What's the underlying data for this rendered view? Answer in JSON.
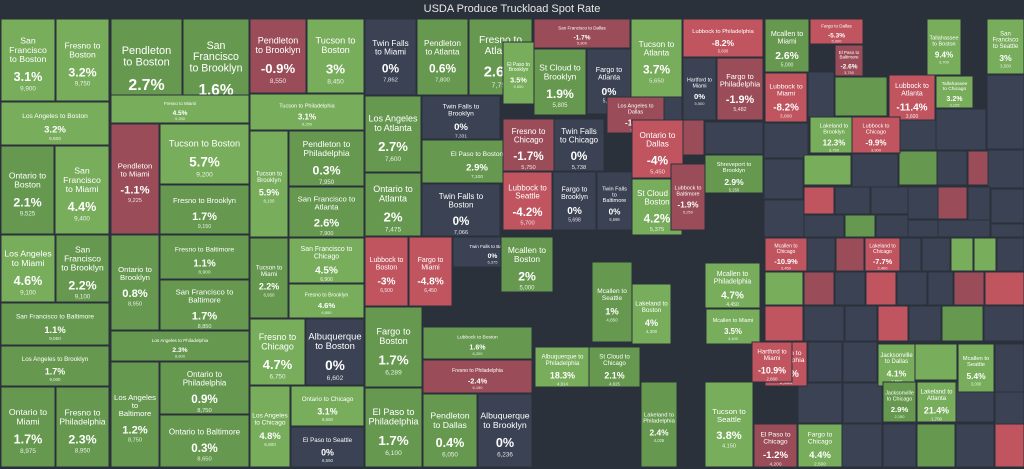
{
  "chart_data": {
    "type": "treemap",
    "title": "USDA Produce Truckload Spot Rate",
    "size_metric": "spot rate ($)",
    "color_metric": "percent change",
    "colors": {
      "neg_strong": "#c0545f",
      "neg": "#9a4d58",
      "neutral": "#3a4253",
      "pos": "#66994f",
      "pos_strong": "#78ad5c",
      "background": "#2b313b"
    },
    "tiles": [
      {
        "label": "San Francisco to Boston",
        "change": "3.1%",
        "value": "9,900",
        "pct": 3.1
      },
      {
        "label": "Fresno to Boston",
        "change": "3.2%",
        "value": "9,750",
        "pct": 3.2
      },
      {
        "label": "Los Angeles to Boston",
        "change": "3.2%",
        "value": "9,600",
        "pct": 3.2
      },
      {
        "label": "Ontario to Boston",
        "change": "2.1%",
        "value": "9,525",
        "pct": 2.1
      },
      {
        "label": "San Francisco to Miami",
        "change": "4.4%",
        "value": "9,400",
        "pct": 4.4
      },
      {
        "label": "Los Angeles to Miami",
        "change": "4.6%",
        "value": "9,100",
        "pct": 4.6
      },
      {
        "label": "San Francisco to Brooklyn",
        "change": "2.2%",
        "value": "9,100",
        "pct": 2.2
      },
      {
        "label": "San Francisco to Baltimore",
        "change": "1.1%",
        "value": "9,050",
        "pct": 1.1
      },
      {
        "label": "Los Angeles to Brooklyn",
        "change": "1.7%",
        "value": "9,000",
        "pct": 1.7
      },
      {
        "label": "Ontario to Miami",
        "change": "1.7%",
        "value": "8,975",
        "pct": 1.7
      },
      {
        "label": "Fresno to Philadelphia",
        "change": "2.3%",
        "value": "8,950",
        "pct": 2.3
      },
      {
        "label": "Pendleton to Boston",
        "change": "2.7%",
        "value": "9,350",
        "pct": 2.7
      },
      {
        "label": "San Francisco to Brooklyn",
        "change": "1.6%",
        "value": "9,300",
        "pct": 1.6
      },
      {
        "label": "Fresno to Miami",
        "change": "4.5%",
        "value": "9,250",
        "pct": 4.5
      },
      {
        "label": "Pendleton to Miami",
        "change": "-1.1%",
        "value": "9,225",
        "pct": -1.1
      },
      {
        "label": "Tucson to Boston",
        "change": "5.7%",
        "value": "9,200",
        "pct": 5.7
      },
      {
        "label": "Fresno to Brooklyn",
        "change": "1.7%",
        "value": "9,150",
        "pct": 1.7
      },
      {
        "label": "Ontario to Brooklyn",
        "change": "0.8%",
        "value": "8,950",
        "pct": 0.8
      },
      {
        "label": "Fresno to Baltimore",
        "change": "1.1%",
        "value": "8,900",
        "pct": 1.1
      },
      {
        "label": "San Francisco to Baltimore",
        "change": "1.7%",
        "value": "8,850",
        "pct": 1.7
      },
      {
        "label": "Los Angeles to Philadelphia",
        "change": "2.3%",
        "value": "8,800",
        "pct": 2.3
      },
      {
        "label": "Los Angeles to Baltimore",
        "change": "1.2%",
        "value": "8,750",
        "pct": 1.2
      },
      {
        "label": "Ontario to Philadelphia",
        "change": "0.9%",
        "value": "8,750",
        "pct": 0.9
      },
      {
        "label": "Ontario to Baltimore",
        "change": "0.3%",
        "value": "8,650",
        "pct": 0.3
      },
      {
        "label": "Pendleton to Brooklyn",
        "change": "-0.9%",
        "value": "8,550",
        "pct": -0.9
      },
      {
        "label": "Tucson to Boston",
        "change": "3%",
        "value": "8,450",
        "pct": 3
      },
      {
        "label": "Tucson to Philadelphia",
        "change": "3.1%",
        "value": "8,250",
        "pct": 3.1
      },
      {
        "label": "Tucson to Brooklyn",
        "change": "5.9%",
        "value": "8,100",
        "pct": 5.9
      },
      {
        "label": "Pendleton to Philadelphia",
        "change": "0.3%",
        "value": "7,950",
        "pct": 0.3
      },
      {
        "label": "San Francisco to Atlanta",
        "change": "2.6%",
        "value": "7,900",
        "pct": 2.6
      },
      {
        "label": "Tucson to Miami",
        "change": "2.2%",
        "value": "6,950",
        "pct": 2.2
      },
      {
        "label": "San Francisco to Chicago",
        "change": "4.5%",
        "value": "6,900",
        "pct": 4.5
      },
      {
        "label": "Fresno to Brooklyn",
        "change": "4.6%",
        "value": "6,850",
        "pct": 4.6
      },
      {
        "label": "Fresno to Chicago",
        "change": "4.7%",
        "value": "6,750",
        "pct": 4.7
      },
      {
        "label": "Albuquerque to Boston",
        "change": "0%",
        "value": "6,602",
        "pct": 0
      },
      {
        "label": "Los Angeles to Chicago",
        "change": "4.8%",
        "value": "6,600",
        "pct": 4.8
      },
      {
        "label": "Ontario to Chicago",
        "change": "3.1%",
        "value": "6,650",
        "pct": 3.1
      },
      {
        "label": "El Paso to Seattle",
        "change": "0%",
        "value": "6,550",
        "pct": 0
      },
      {
        "label": "Twin Falls to Miami",
        "change": "0%",
        "value": "7,862",
        "pct": 0
      },
      {
        "label": "Pendleton to Atlanta",
        "change": "0.6%",
        "value": "7,800",
        "pct": 0.6
      },
      {
        "label": "Fresno to Atlanta",
        "change": "2.6%",
        "value": "7,750",
        "pct": 2.6
      },
      {
        "label": "Los Angeles to Atlanta",
        "change": "2.7%",
        "value": "7,600",
        "pct": 2.7
      },
      {
        "label": "Twin Falls to Brooklyn",
        "change": "0%",
        "value": "7,331",
        "pct": 0
      },
      {
        "label": "El Paso to Boston",
        "change": "2.9%",
        "value": "7,100",
        "pct": 2.9
      },
      {
        "label": "Ontario to Atlanta",
        "change": "2%",
        "value": "7,475",
        "pct": 2
      },
      {
        "label": "Twin Falls to Boston",
        "change": "0%",
        "value": "7,066",
        "pct": 0
      },
      {
        "label": "Lubbock to Boston",
        "change": "-3%",
        "value": "6,500",
        "pct": -3
      },
      {
        "label": "Fargo to Miami",
        "change": "-4.8%",
        "value": "6,450",
        "pct": -4.8
      },
      {
        "label": "Twin Falls to Baltimore",
        "change": "0%",
        "value": "6,375",
        "pct": 0
      },
      {
        "label": "Fargo to Boston",
        "change": "1.7%",
        "value": "6,289",
        "pct": 1.7
      },
      {
        "label": "Lubbock to Boston",
        "change": "1.6%",
        "value": "6,200",
        "pct": 1.6
      },
      {
        "label": "Fresno to Philadelphia",
        "change": "-2.4%",
        "value": "6,150",
        "pct": -2.4
      },
      {
        "label": "El Paso to Philadelphia",
        "change": "1.7%",
        "value": "6,100",
        "pct": 1.7
      },
      {
        "label": "Pendleton to Dallas",
        "change": "0.4%",
        "value": "6,050",
        "pct": 0.4
      },
      {
        "label": "Albuquerque to Brooklyn",
        "change": "0%",
        "value": "6,236",
        "pct": 0
      },
      {
        "label": "Mcallen to Boston",
        "change": "2%",
        "value": "5,000",
        "pct": 2
      },
      {
        "label": "Albuquerque to Philadelphia",
        "change": "18.3%",
        "value": "4,914",
        "pct": 18.3
      },
      {
        "label": "San Francisco to Dallas",
        "change": "-1.7%",
        "value": "5,800",
        "pct": -1.7
      },
      {
        "label": "Tucson to Atlanta",
        "change": "3.7%",
        "value": "5,650",
        "pct": 3.7
      },
      {
        "label": "Lubbock to Philadelphia",
        "change": "-8.2%",
        "value": "5,600",
        "pct": -8.2
      },
      {
        "label": "El Paso to Brooklyn",
        "change": "3.5%",
        "value": "5,650",
        "pct": 3.5
      },
      {
        "label": "St Cloud to Brooklyn",
        "change": "1.9%",
        "value": "5,805",
        "pct": 1.9
      },
      {
        "label": "Fargo to Atlanta",
        "change": "0%",
        "value": "5,752",
        "pct": 0
      },
      {
        "label": "Los Angeles to Dallas",
        "change": "-1.8%",
        "value": "5,600",
        "pct": -1.8
      },
      {
        "label": "Hartford to Miami",
        "change": "0%",
        "value": "5,500",
        "pct": 0
      },
      {
        "label": "Fargo to Philadelphia",
        "change": "-1.9%",
        "value": "5,482",
        "pct": -1.9
      },
      {
        "label": "Fresno to Chicago",
        "change": "-1.7%",
        "value": "5,750",
        "pct": -1.7
      },
      {
        "label": "Twin Falls to Chicago",
        "change": "0%",
        "value": "5,738",
        "pct": 0
      },
      {
        "label": "Ontario to Dallas",
        "change": "-4%",
        "value": "5,450",
        "pct": -4
      },
      {
        "label": "Lubbock to Seattle",
        "change": "-4.2%",
        "value": "5,700",
        "pct": -4.2
      },
      {
        "label": "Fargo to Brooklyn",
        "change": "0%",
        "value": "5,698",
        "pct": 0
      },
      {
        "label": "Twin Falls to Baltimore",
        "change": "0%",
        "value": "5,698",
        "pct": 0
      },
      {
        "label": "St Cloud to Boston",
        "change": "4.2%",
        "value": "5,375",
        "pct": 4.2
      },
      {
        "label": "Lubbock to Baltimore",
        "change": "-1.9%",
        "value": "5,250",
        "pct": -1.9
      },
      {
        "label": "Shreveport to Brooklyn",
        "change": "2.9%",
        "value": "5,250",
        "pct": 2.9
      },
      {
        "label": "Mcallen to Seattle",
        "change": "1%",
        "value": "4,850",
        "pct": 1
      },
      {
        "label": "St Cloud to Chicago",
        "change": "2.1%",
        "value": "4,825",
        "pct": 2.1
      },
      {
        "label": "Lakeland to Boston",
        "change": "4%",
        "value": "4,300",
        "pct": 4
      },
      {
        "label": "Mcallen to Philadelphia",
        "change": "4.7%",
        "value": "4,450",
        "pct": 4.7
      },
      {
        "label": "Mcallen to Miami",
        "change": "3.5%",
        "value": "4,400",
        "pct": 3.5
      },
      {
        "label": "Fargo to Dallas",
        "change": "-5.3%",
        "value": "5,000",
        "pct": -5.3
      },
      {
        "label": "Mcallen to Miami",
        "change": "2.6%",
        "value": "5,000",
        "pct": 2.6
      },
      {
        "label": "El Paso to Baltimore",
        "change": "-2.6%",
        "value": "3,750",
        "pct": -2.6
      },
      {
        "label": "Lubbock to Miami",
        "change": "-8.2%",
        "value": "3,600",
        "pct": -8.2
      },
      {
        "label": "Tallahassee to Boston",
        "change": "9.4%",
        "value": "3,700",
        "pct": 9.4
      },
      {
        "label": "San Francisco to Seattle",
        "change": "3%",
        "value": "3,500",
        "pct": 3
      },
      {
        "label": "Tallahassee to Chicago",
        "change": "3.2%",
        "value": "3,125",
        "pct": 3.2
      },
      {
        "label": "Lubbock to Atlanta",
        "change": "-11.4%",
        "value": "3,600",
        "pct": -11.4
      },
      {
        "label": "Lakeland to Brooklyn",
        "change": "12.3%",
        "value": "3,750",
        "pct": 12.3
      },
      {
        "label": "Lubbock to Chicago",
        "change": "-9.9%",
        "value": "3,900",
        "pct": -9.9
      },
      {
        "label": "Tucson to Seattle",
        "change": "3.8%",
        "value": "4,150",
        "pct": 3.8
      },
      {
        "label": "Jacksonville to Dallas",
        "change": "4.1%",
        "value": "2,550",
        "pct": 4.1
      },
      {
        "label": "El Paso to Chicago",
        "change": "-1.2%",
        "value": "4,200",
        "pct": -1.2
      },
      {
        "label": "Fargo to Chicago",
        "change": "4.4%",
        "value": "2,500",
        "pct": 4.4
      },
      {
        "label": "Lakeland to Philadelphia",
        "change": "2.4%",
        "value": "4,025",
        "pct": 2.4
      },
      {
        "label": "Mcallen to Philadelphia",
        "change": "-5.3%",
        "value": "2,400",
        "pct": -5.3
      },
      {
        "label": "Mcallen to Chicago",
        "change": "-10.9%",
        "value": "2,450",
        "pct": -10.9
      },
      {
        "label": "Lakeland to Atlanta",
        "change": "21.4%",
        "value": "1,700",
        "pct": 21.4
      },
      {
        "label": "Jacksonville to Chicago",
        "change": "2.9%",
        "value": "2,150",
        "pct": 2.9
      },
      {
        "label": "Hartford to Miami",
        "change": "-10.9%",
        "value": "2,800",
        "pct": -10.9
      },
      {
        "label": "Mcallen to Seattle",
        "change": "5.4%",
        "value": "3,000",
        "pct": 5.4
      },
      {
        "label": "Lakeland to Chicago",
        "change": "-7.7%",
        "value": "2,400",
        "pct": -7.7
      }
    ]
  }
}
